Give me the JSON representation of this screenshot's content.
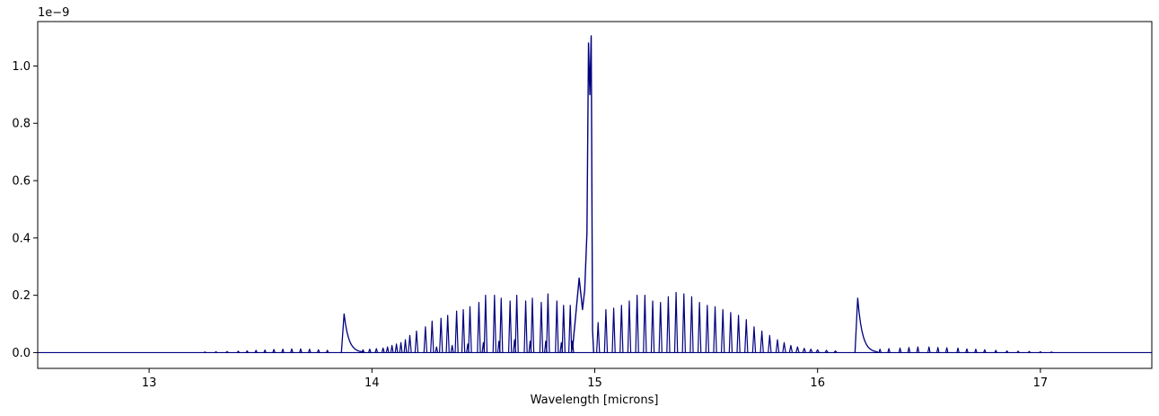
{
  "chart_data": {
    "type": "line",
    "title": "",
    "xlabel": "Wavelength [microns]",
    "ylabel": "",
    "offset_label": "1e−9",
    "xlim": [
      12.5,
      17.5
    ],
    "ylim": [
      -0.055,
      1.155
    ],
    "y_multiplier": 1e-09,
    "xticks": [
      13,
      14,
      15,
      16,
      17
    ],
    "xtick_labels": [
      "13",
      "14",
      "15",
      "16",
      "17"
    ],
    "yticks": [
      0.0,
      0.2,
      0.4,
      0.6,
      0.8,
      1.0
    ],
    "ytick_labels": [
      "0.0",
      "0.2",
      "0.4",
      "0.6",
      "0.8",
      "1.0"
    ],
    "grid": false,
    "legend": "none",
    "series_color": "#00007f",
    "baseline_color": "#000080",
    "features": {
      "q_branch": [
        {
          "x": 14.93,
          "y": 0.26
        },
        {
          "x": 14.945,
          "y": 0.15
        },
        {
          "x": 14.955,
          "y": 0.22
        },
        {
          "x": 14.965,
          "y": 0.42
        },
        {
          "x": 14.972,
          "y": 1.08
        },
        {
          "x": 14.978,
          "y": 0.9
        },
        {
          "x": 14.984,
          "y": 1.105
        },
        {
          "x": 14.99,
          "y": 0.08
        }
      ],
      "bands": [
        {
          "x": 13.875,
          "y": 0.135
        },
        {
          "x": 16.18,
          "y": 0.19
        }
      ],
      "left_weak": [
        {
          "x": 13.25,
          "y": 0.002
        },
        {
          "x": 13.3,
          "y": 0.003
        },
        {
          "x": 13.35,
          "y": 0.004
        },
        {
          "x": 13.4,
          "y": 0.005
        },
        {
          "x": 13.44,
          "y": 0.006
        },
        {
          "x": 13.48,
          "y": 0.008
        },
        {
          "x": 13.52,
          "y": 0.009
        },
        {
          "x": 13.56,
          "y": 0.011
        },
        {
          "x": 13.6,
          "y": 0.012
        },
        {
          "x": 13.64,
          "y": 0.013
        },
        {
          "x": 13.68,
          "y": 0.013
        },
        {
          "x": 13.72,
          "y": 0.012
        },
        {
          "x": 13.76,
          "y": 0.01
        },
        {
          "x": 13.8,
          "y": 0.008
        }
      ],
      "left_branch": [
        {
          "x": 14.17,
          "y": 0.06
        },
        {
          "x": 14.2,
          "y": 0.075
        },
        {
          "x": 14.24,
          "y": 0.09
        },
        {
          "x": 14.27,
          "y": 0.11
        },
        {
          "x": 14.31,
          "y": 0.12
        },
        {
          "x": 14.34,
          "y": 0.13
        },
        {
          "x": 14.38,
          "y": 0.145
        },
        {
          "x": 14.41,
          "y": 0.15
        },
        {
          "x": 14.44,
          "y": 0.16
        },
        {
          "x": 14.48,
          "y": 0.175
        },
        {
          "x": 14.51,
          "y": 0.2
        },
        {
          "x": 14.55,
          "y": 0.2
        },
        {
          "x": 14.58,
          "y": 0.19
        },
        {
          "x": 14.62,
          "y": 0.18
        },
        {
          "x": 14.65,
          "y": 0.2
        },
        {
          "x": 14.69,
          "y": 0.18
        },
        {
          "x": 14.72,
          "y": 0.19
        },
        {
          "x": 14.76,
          "y": 0.175
        },
        {
          "x": 14.79,
          "y": 0.205
        },
        {
          "x": 14.83,
          "y": 0.18
        },
        {
          "x": 14.86,
          "y": 0.165
        },
        {
          "x": 14.89,
          "y": 0.165
        }
      ],
      "left_small": [
        {
          "x": 13.96,
          "y": 0.01
        },
        {
          "x": 13.99,
          "y": 0.012
        },
        {
          "x": 14.02,
          "y": 0.014
        },
        {
          "x": 14.05,
          "y": 0.016
        },
        {
          "x": 14.07,
          "y": 0.02
        },
        {
          "x": 14.09,
          "y": 0.025
        },
        {
          "x": 14.11,
          "y": 0.03
        },
        {
          "x": 14.13,
          "y": 0.035
        },
        {
          "x": 14.15,
          "y": 0.045
        },
        {
          "x": 14.29,
          "y": 0.02
        },
        {
          "x": 14.36,
          "y": 0.025
        },
        {
          "x": 14.43,
          "y": 0.03
        },
        {
          "x": 14.5,
          "y": 0.035
        },
        {
          "x": 14.57,
          "y": 0.04
        },
        {
          "x": 14.64,
          "y": 0.045
        },
        {
          "x": 14.71,
          "y": 0.04
        },
        {
          "x": 14.78,
          "y": 0.04
        },
        {
          "x": 14.85,
          "y": 0.035
        },
        {
          "x": 14.9,
          "y": 0.04
        }
      ],
      "right_branch": [
        {
          "x": 15.015,
          "y": 0.105
        },
        {
          "x": 15.05,
          "y": 0.15
        },
        {
          "x": 15.085,
          "y": 0.155
        },
        {
          "x": 15.12,
          "y": 0.165
        },
        {
          "x": 15.155,
          "y": 0.18
        },
        {
          "x": 15.19,
          "y": 0.2
        },
        {
          "x": 15.225,
          "y": 0.2
        },
        {
          "x": 15.26,
          "y": 0.18
        },
        {
          "x": 15.295,
          "y": 0.175
        },
        {
          "x": 15.33,
          "y": 0.195
        },
        {
          "x": 15.365,
          "y": 0.21
        },
        {
          "x": 15.4,
          "y": 0.205
        },
        {
          "x": 15.435,
          "y": 0.195
        },
        {
          "x": 15.47,
          "y": 0.175
        },
        {
          "x": 15.505,
          "y": 0.165
        },
        {
          "x": 15.54,
          "y": 0.16
        },
        {
          "x": 15.575,
          "y": 0.15
        },
        {
          "x": 15.61,
          "y": 0.14
        },
        {
          "x": 15.645,
          "y": 0.13
        },
        {
          "x": 15.68,
          "y": 0.115
        },
        {
          "x": 15.715,
          "y": 0.09
        },
        {
          "x": 15.75,
          "y": 0.075
        },
        {
          "x": 15.785,
          "y": 0.06
        },
        {
          "x": 15.82,
          "y": 0.045
        },
        {
          "x": 15.85,
          "y": 0.035
        },
        {
          "x": 15.88,
          "y": 0.025
        },
        {
          "x": 15.91,
          "y": 0.02
        },
        {
          "x": 15.94,
          "y": 0.015
        },
        {
          "x": 15.97,
          "y": 0.012
        },
        {
          "x": 16.0,
          "y": 0.01
        },
        {
          "x": 16.04,
          "y": 0.008
        },
        {
          "x": 16.08,
          "y": 0.006
        }
      ],
      "right_weak": [
        {
          "x": 16.28,
          "y": 0.012
        },
        {
          "x": 16.32,
          "y": 0.014
        },
        {
          "x": 16.37,
          "y": 0.016
        },
        {
          "x": 16.41,
          "y": 0.018
        },
        {
          "x": 16.45,
          "y": 0.02
        },
        {
          "x": 16.5,
          "y": 0.02
        },
        {
          "x": 16.54,
          "y": 0.018
        },
        {
          "x": 16.58,
          "y": 0.017
        },
        {
          "x": 16.63,
          "y": 0.016
        },
        {
          "x": 16.67,
          "y": 0.013
        },
        {
          "x": 16.71,
          "y": 0.012
        },
        {
          "x": 16.75,
          "y": 0.01
        },
        {
          "x": 16.8,
          "y": 0.008
        },
        {
          "x": 16.85,
          "y": 0.006
        },
        {
          "x": 16.9,
          "y": 0.005
        },
        {
          "x": 16.95,
          "y": 0.004
        },
        {
          "x": 17.0,
          "y": 0.003
        },
        {
          "x": 17.05,
          "y": 0.002
        }
      ]
    }
  }
}
